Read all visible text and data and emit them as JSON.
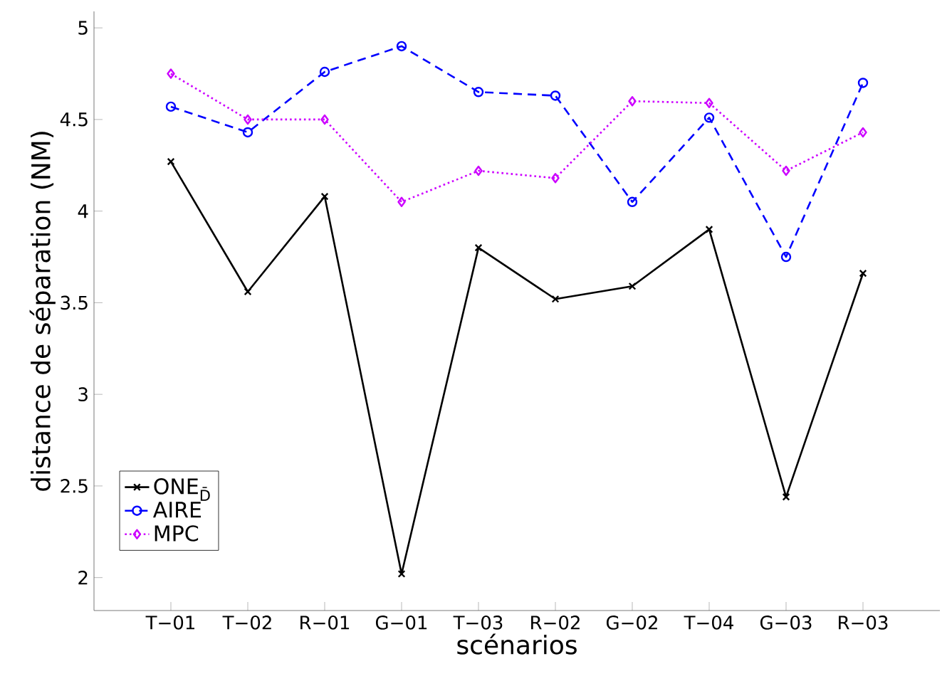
{
  "chart_data": {
    "type": "line",
    "xlabel": "scénarios",
    "ylabel": "distance de séparation (NM)",
    "categories": [
      "T−01",
      "T−02",
      "R−01",
      "G−01",
      "T−03",
      "R−02",
      "G−02",
      "T−04",
      "G−03",
      "R−03"
    ],
    "series": [
      {
        "name": "ONE$_{D̄}$",
        "color": "#000000",
        "marker": "cross",
        "line_style": "solid",
        "values": [
          4.27,
          3.56,
          4.08,
          2.02,
          3.8,
          3.52,
          3.59,
          3.9,
          2.44,
          3.66
        ]
      },
      {
        "name": "AIRE",
        "color": "#0000ff",
        "marker": "circle",
        "line_style": "dashed",
        "values": [
          4.57,
          4.43,
          4.76,
          4.9,
          4.65,
          4.63,
          4.05,
          4.51,
          3.75,
          4.7
        ]
      },
      {
        "name": "MPC",
        "color": "#cc00ff",
        "marker": "diamond",
        "line_style": "dotted",
        "values": [
          4.75,
          4.5,
          4.5,
          4.05,
          4.22,
          4.18,
          4.6,
          4.59,
          4.22,
          4.43
        ]
      }
    ],
    "ylim": [
      1.82,
      5.09
    ],
    "yticks": [
      2,
      2.5,
      3,
      3.5,
      4,
      4.5,
      5
    ],
    "grid": false,
    "legend": "bottom left"
  }
}
